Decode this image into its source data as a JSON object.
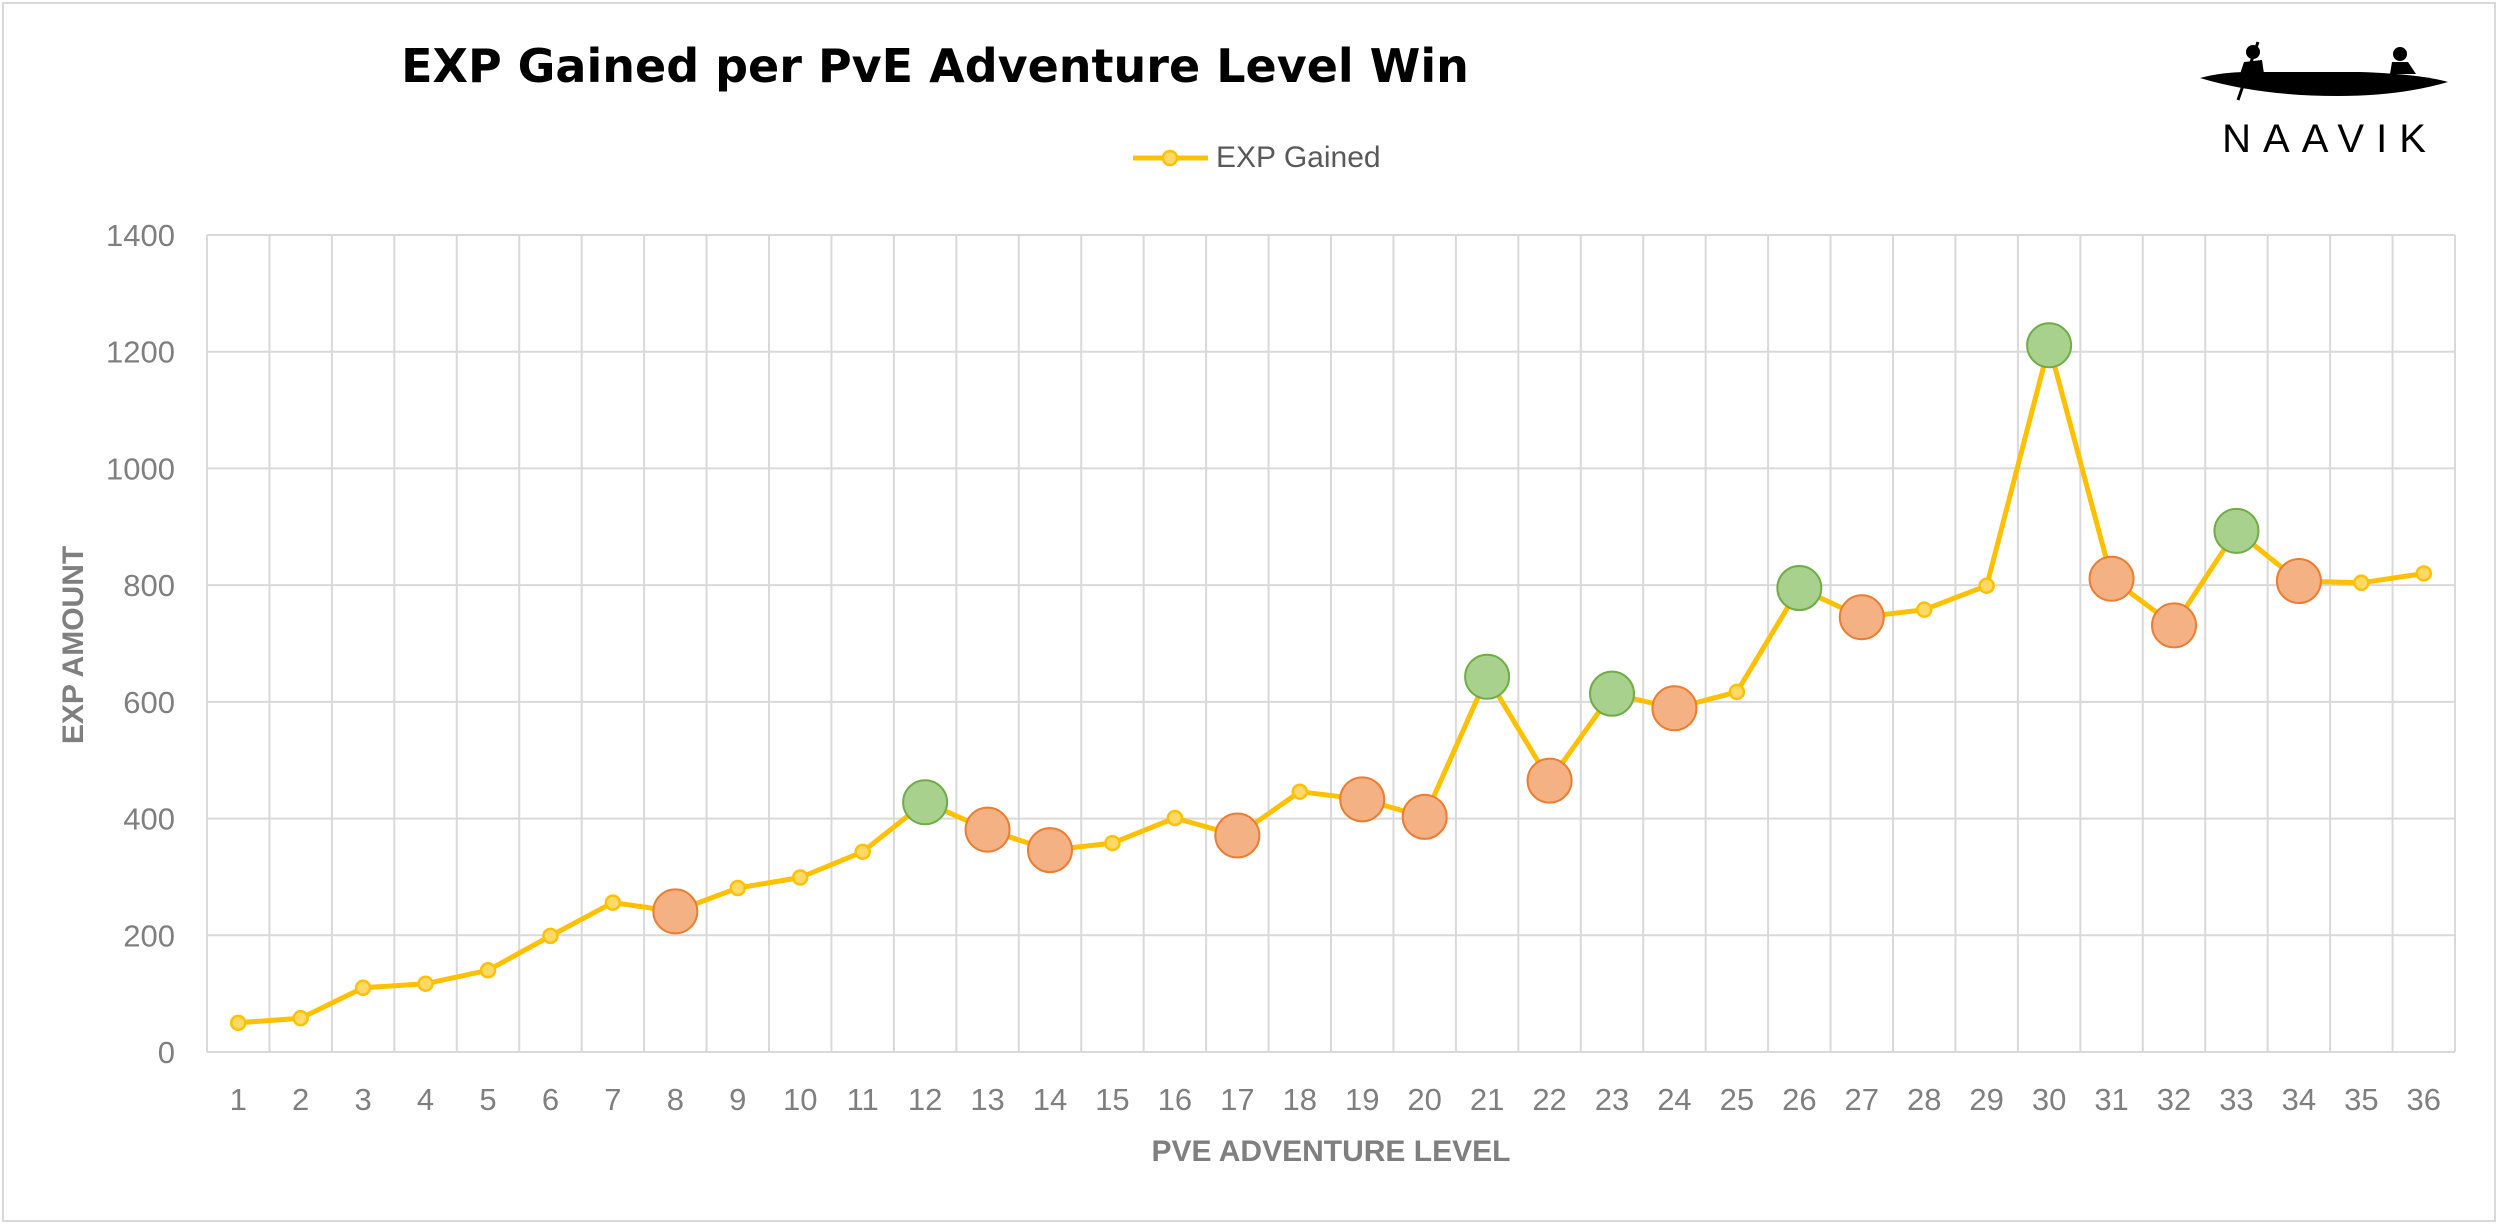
{
  "brand": {
    "name": "NAAVIK"
  },
  "chart_data": {
    "type": "line",
    "title": "EXP Gained per PvE Adventure Level Win",
    "xlabel": "PVE ADVENTURE LEVEL",
    "ylabel": "EXP AMOUNT",
    "legend": {
      "position": "top",
      "entries": [
        "EXP Gained"
      ]
    },
    "grid": true,
    "ylim": [
      0,
      1400
    ],
    "yticks": [
      0,
      200,
      400,
      600,
      800,
      1000,
      1200,
      1400
    ],
    "categories": [
      "1",
      "2",
      "3",
      "4",
      "5",
      "6",
      "7",
      "8",
      "9",
      "10",
      "11",
      "12",
      "13",
      "14",
      "15",
      "16",
      "17",
      "18",
      "19",
      "20",
      "21",
      "22",
      "23",
      "24",
      "25",
      "26",
      "27",
      "28",
      "29",
      "30",
      "31",
      "32",
      "33",
      "34",
      "35",
      "36"
    ],
    "series": [
      {
        "name": "EXP Gained",
        "color": "#FFC000",
        "values": [
          50,
          58,
          110,
          117,
          140,
          199,
          256,
          241,
          281,
          299,
          343,
          428,
          381,
          346,
          358,
          401,
          371,
          446,
          433,
          403,
          643,
          465,
          614,
          589,
          617,
          795,
          745,
          758,
          799,
          1211,
          811,
          731,
          893,
          807,
          804,
          820
        ],
        "highlights": {
          "higher": [
            12,
            21,
            23,
            26,
            30,
            33
          ],
          "lower": [
            8,
            13,
            14,
            17,
            19,
            20,
            22,
            24,
            27,
            31,
            32,
            34
          ]
        }
      }
    ],
    "colors": {
      "line": "#FFC000",
      "higher_marker": "#A9D18E",
      "lower_marker": "#F4B183",
      "grid": "#D9D9D9",
      "axis_text": "#7F7F7F"
    }
  }
}
